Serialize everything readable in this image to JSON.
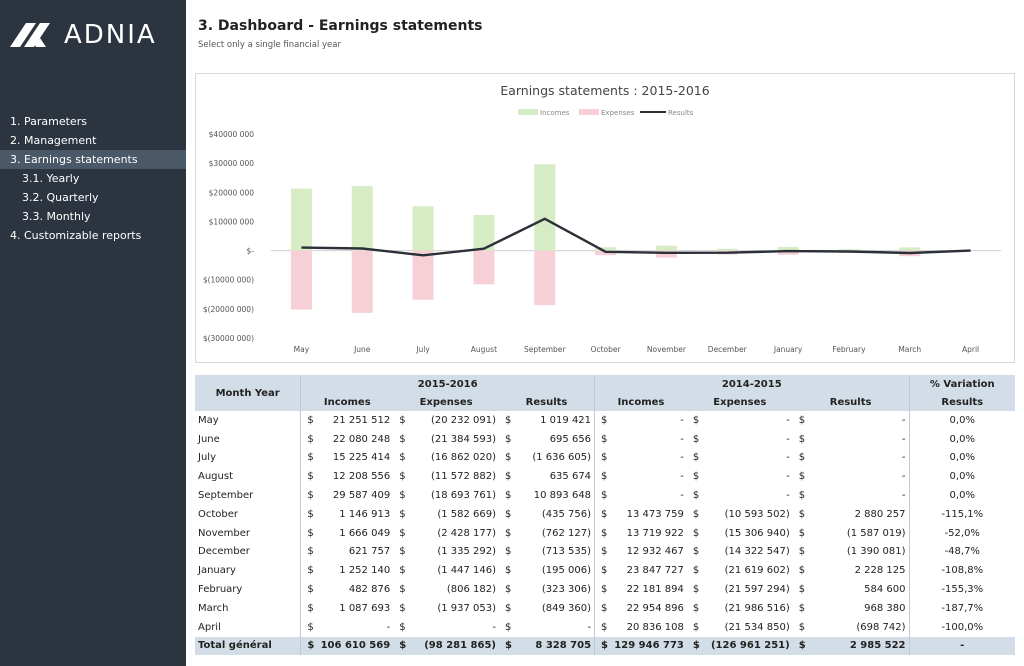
{
  "brand": {
    "name": "ADNIA"
  },
  "nav": [
    {
      "label": "1. Parameters",
      "sub": false,
      "active": false
    },
    {
      "label": "2. Management",
      "sub": false,
      "active": false
    },
    {
      "label": "3. Earnings statements",
      "sub": false,
      "active": true
    },
    {
      "label": "3.1. Yearly",
      "sub": true,
      "active": false
    },
    {
      "label": "3.2. Quarterly",
      "sub": true,
      "active": false
    },
    {
      "label": "3.3. Monthly",
      "sub": true,
      "active": false
    },
    {
      "label": "4. Customizable reports",
      "sub": false,
      "active": false
    }
  ],
  "page": {
    "title": "3. Dashboard - Earnings statements",
    "subtitle": "Select only a single financial year"
  },
  "colors": {
    "incomes": "#d6ecc4",
    "expenses": "#f6d0d6",
    "results": "#2b3038",
    "header": "#d3dde7"
  },
  "chart_data": {
    "type": "bar",
    "title": "Earnings statements : 2015-2016",
    "categories": [
      "May",
      "June",
      "July",
      "August",
      "September",
      "October",
      "November",
      "December",
      "January",
      "February",
      "March",
      "April"
    ],
    "series": [
      {
        "name": "Incomes",
        "kind": "bar",
        "values": [
          21251512,
          22080248,
          15225414,
          12208556,
          29587409,
          1146913,
          1666049,
          621757,
          1252140,
          482876,
          1087693,
          0
        ]
      },
      {
        "name": "Expenses",
        "kind": "bar",
        "values": [
          -20232091,
          -21384593,
          -16862020,
          -11572882,
          -18693761,
          -1582669,
          -2428177,
          -1335292,
          -1447146,
          -806182,
          -1937053,
          0
        ]
      },
      {
        "name": "Results",
        "kind": "line",
        "values": [
          1019421,
          695656,
          -1636605,
          635674,
          10893648,
          -435756,
          -762127,
          -713535,
          -195006,
          -323306,
          -849360,
          0
        ]
      }
    ],
    "ylim": [
      -30000000,
      40000000
    ],
    "yticks": [
      {
        "value": 40000000,
        "label": "$40000 000"
      },
      {
        "value": 30000000,
        "label": "$30000 000"
      },
      {
        "value": 20000000,
        "label": "$20000 000"
      },
      {
        "value": 10000000,
        "label": "$10000 000"
      },
      {
        "value": 0,
        "label": "$-"
      },
      {
        "value": -10000000,
        "label": "$(10000 000)"
      },
      {
        "value": -20000000,
        "label": "$(20000 000)"
      },
      {
        "value": -30000000,
        "label": "$(30000 000)"
      }
    ],
    "legend_position": "top-center",
    "grid": false
  },
  "table": {
    "month_header": "Month Year",
    "year1": "2015-2016",
    "year2": "2014-2015",
    "variation_header_1": "% Variation",
    "variation_header_2": "Results",
    "sub_headers": [
      "Incomes",
      "Expenses",
      "Results"
    ],
    "currency": "$",
    "rows": [
      {
        "month": "May",
        "y1": [
          "21 251 512",
          "(20 232 091)",
          "1 019 421"
        ],
        "y2": [
          "-",
          "-",
          "-"
        ],
        "var": "0,0%"
      },
      {
        "month": "June",
        "y1": [
          "22 080 248",
          "(21 384 593)",
          "695 656"
        ],
        "y2": [
          "-",
          "-",
          "-"
        ],
        "var": "0,0%"
      },
      {
        "month": "July",
        "y1": [
          "15 225 414",
          "(16 862 020)",
          "(1 636 605)"
        ],
        "y2": [
          "-",
          "-",
          "-"
        ],
        "var": "0,0%"
      },
      {
        "month": "August",
        "y1": [
          "12 208 556",
          "(11 572 882)",
          "635 674"
        ],
        "y2": [
          "-",
          "-",
          "-"
        ],
        "var": "0,0%"
      },
      {
        "month": "September",
        "y1": [
          "29 587 409",
          "(18 693 761)",
          "10 893 648"
        ],
        "y2": [
          "-",
          "-",
          "-"
        ],
        "var": "0,0%"
      },
      {
        "month": "October",
        "y1": [
          "1 146 913",
          "(1 582 669)",
          "(435 756)"
        ],
        "y2": [
          "13 473 759",
          "(10 593 502)",
          "2 880 257"
        ],
        "var": "-115,1%"
      },
      {
        "month": "November",
        "y1": [
          "1 666 049",
          "(2 428 177)",
          "(762 127)"
        ],
        "y2": [
          "13 719 922",
          "(15 306 940)",
          "(1 587 019)"
        ],
        "var": "-52,0%"
      },
      {
        "month": "December",
        "y1": [
          "621 757",
          "(1 335 292)",
          "(713 535)"
        ],
        "y2": [
          "12 932 467",
          "(14 322 547)",
          "(1 390 081)"
        ],
        "var": "-48,7%"
      },
      {
        "month": "January",
        "y1": [
          "1 252 140",
          "(1 447 146)",
          "(195 006)"
        ],
        "y2": [
          "23 847 727",
          "(21 619 602)",
          "2 228 125"
        ],
        "var": "-108,8%"
      },
      {
        "month": "February",
        "y1": [
          "482 876",
          "(806 182)",
          "(323 306)"
        ],
        "y2": [
          "22 181 894",
          "(21 597 294)",
          "584 600"
        ],
        "var": "-155,3%"
      },
      {
        "month": "March",
        "y1": [
          "1 087 693",
          "(1 937 053)",
          "(849 360)"
        ],
        "y2": [
          "22 954 896",
          "(21 986 516)",
          "968 380"
        ],
        "var": "-187,7%"
      },
      {
        "month": "April",
        "y1": [
          "-",
          "-",
          "-"
        ],
        "y2": [
          "20 836 108",
          "(21 534 850)",
          "(698 742)"
        ],
        "var": "-100,0%"
      }
    ],
    "total": {
      "month": "Total général",
      "y1": [
        "106 610 569",
        "(98 281 865)",
        "8 328 705"
      ],
      "y2": [
        "129 946 773",
        "(126 961 251)",
        "2 985 522"
      ],
      "var": "-"
    }
  }
}
